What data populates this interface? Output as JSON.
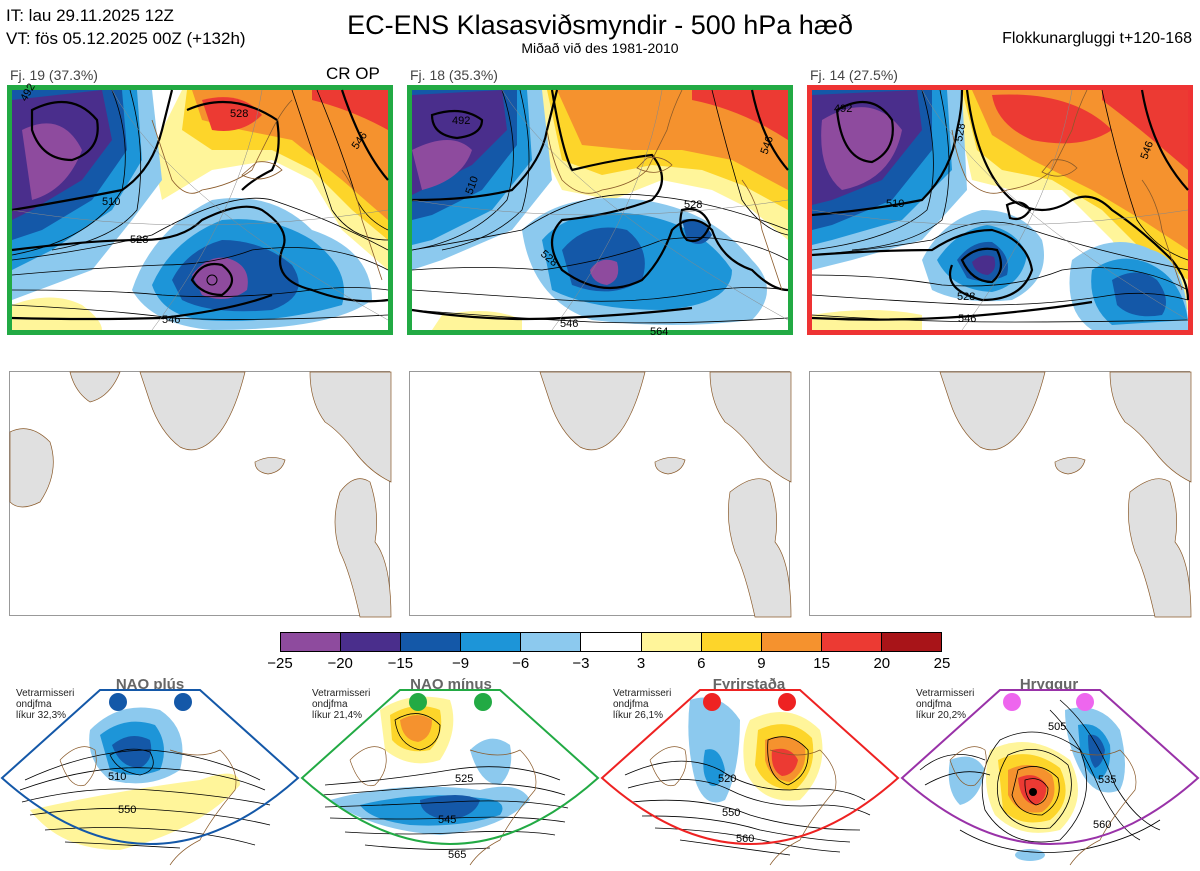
{
  "header": {
    "it_line": "IT: lau 29.11.2025 12Z",
    "vt_line": "VT: fös 05.12.2025 00Z  (+132h)",
    "title": "EC-ENS Klasasviðsmyndir - 500 hPa hæð",
    "subtitle": "Miðað við des 1981-2010",
    "window": "Flokkunargluggi t+120-168"
  },
  "clusters": [
    {
      "label": "Fj. 19 (37.3%)",
      "tag": "CR OP",
      "frame_color": "#22aa44",
      "contours": [
        "492",
        "510",
        "528",
        "546",
        "528",
        "546"
      ]
    },
    {
      "label": "Fj. 18 (35.3%)",
      "tag": "",
      "frame_color": "#22aa44",
      "contours": [
        "492",
        "510",
        "528",
        "546",
        "528",
        "546",
        "564"
      ]
    },
    {
      "label": "Fj. 14 (27.5%)",
      "tag": "",
      "frame_color": "#ee3333",
      "contours": [
        "492",
        "510",
        "528",
        "546",
        "528",
        "546"
      ]
    }
  ],
  "colorbar": {
    "colors": [
      "#8e4b9e",
      "#4a2e8c",
      "#1458a8",
      "#1d95d8",
      "#8cc9ee",
      "#ffffff",
      "#fff59a",
      "#fdd52a",
      "#f5922e",
      "#ec3a33",
      "#a81418"
    ],
    "ticks": [
      "−25",
      "−20",
      "−15",
      "−9",
      "−6",
      "−3",
      "3",
      "6",
      "9",
      "15",
      "20",
      "25"
    ]
  },
  "regimes": [
    {
      "name": "NAO plús",
      "info_l1": "Vetrarmisseri",
      "info_l2": "ondjfma",
      "info_l3": "líkur 32,3%",
      "color": "#1458a8",
      "contours": [
        "510",
        "550"
      ]
    },
    {
      "name": "NAO mínus",
      "info_l1": "Vetrarmisseri",
      "info_l2": "ondjfma",
      "info_l3": "líkur 21,4%",
      "color": "#22aa44",
      "contours": [
        "525",
        "545",
        "565"
      ]
    },
    {
      "name": "Fyrirstaða",
      "info_l1": "Vetrarmisseri",
      "info_l2": "ondjfma",
      "info_l3": "líkur 26,1%",
      "color": "#ee2222",
      "contours": [
        "520",
        "550",
        "560"
      ]
    },
    {
      "name": "Hryggur",
      "info_l1": "Vetrarmisseri",
      "info_l2": "ondjfma",
      "info_l3": "líkur 20,2%",
      "color": "#ee66ee",
      "contours": [
        "505",
        "535",
        "560"
      ]
    }
  ]
}
